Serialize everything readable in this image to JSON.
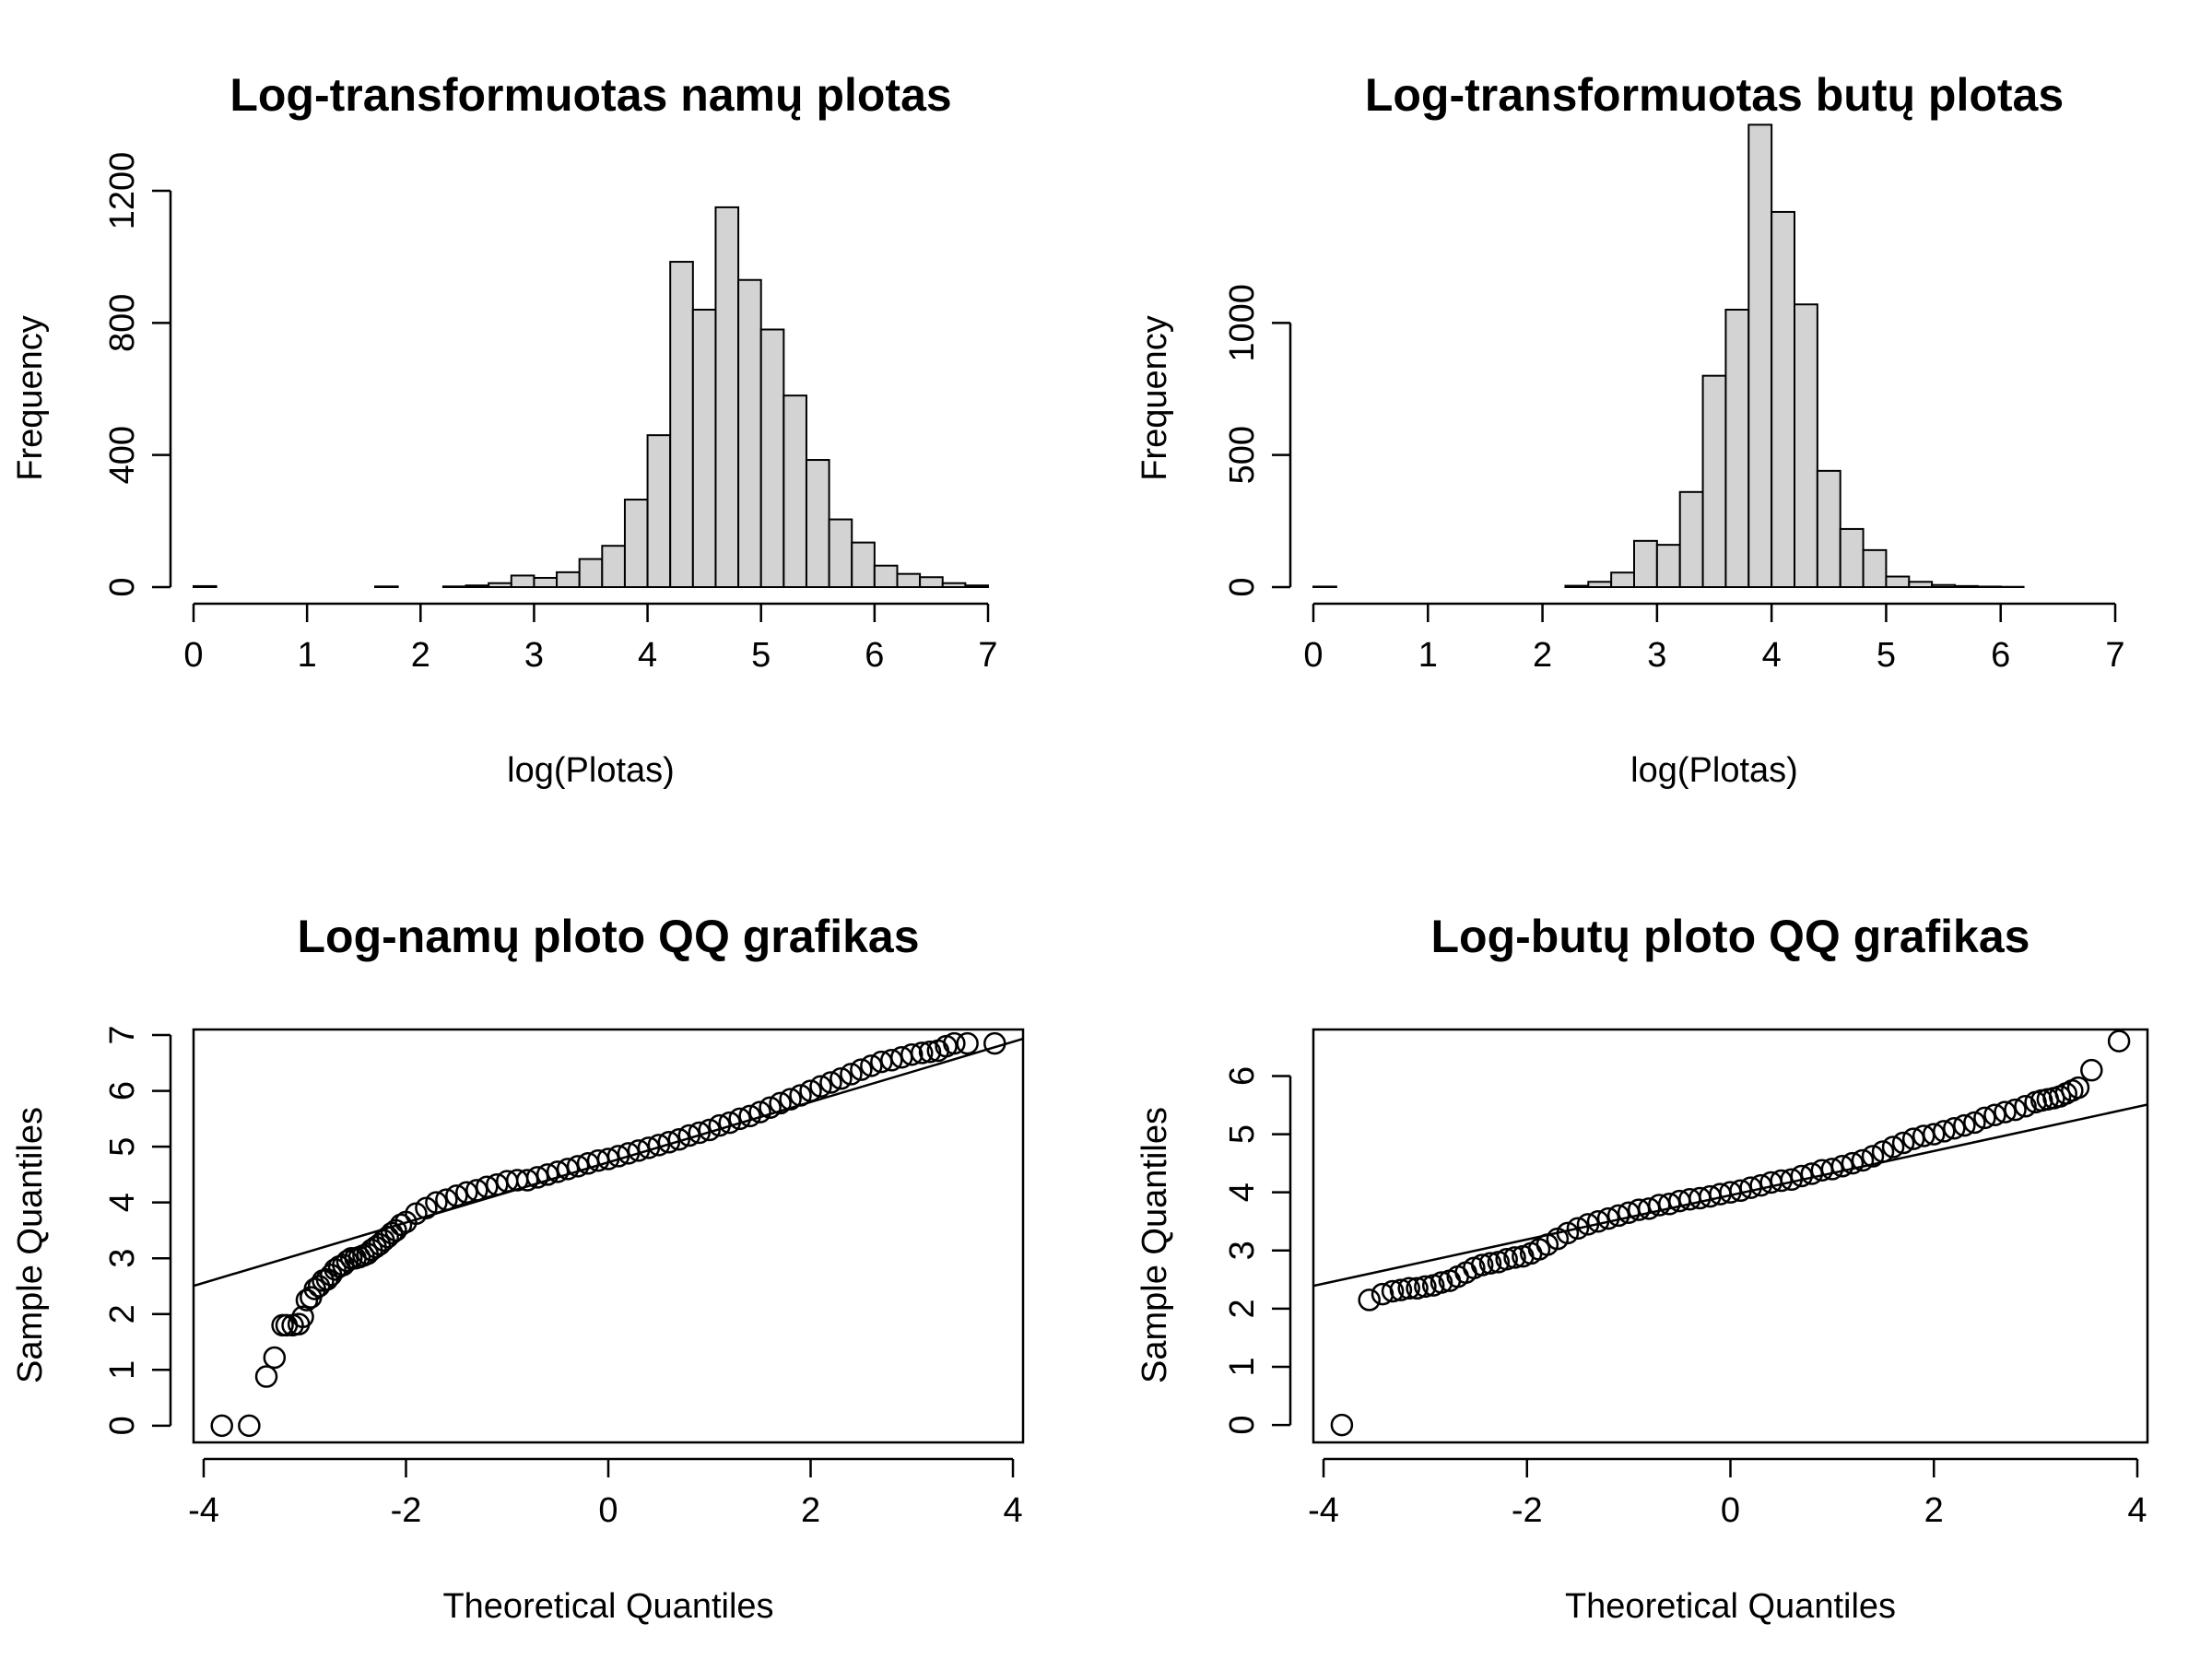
{
  "chart_data": [
    {
      "type": "bar",
      "subtype": "histogram",
      "title": "Log-transformuotas namų plotas",
      "xlabel": "log(Plotas)",
      "ylabel": "Frequency",
      "xlim": [
        0,
        7
      ],
      "ylim": [
        0,
        1200
      ],
      "x_ticks": [
        "0",
        "1",
        "2",
        "3",
        "4",
        "5",
        "6",
        "7"
      ],
      "y_ticks": [
        "0",
        "400",
        "800",
        "1200"
      ],
      "bin_width": 0.2,
      "bins_start": [
        0.0,
        0.2,
        0.4,
        0.6,
        0.8,
        1.0,
        1.2,
        1.4,
        1.6,
        1.8,
        2.0,
        2.2,
        2.4,
        2.6,
        2.8,
        3.0,
        3.2,
        3.4,
        3.6,
        3.8,
        4.0,
        4.2,
        4.4,
        4.6,
        4.8,
        5.0,
        5.2,
        5.4,
        5.6,
        5.8,
        6.0,
        6.2,
        6.4,
        6.6,
        6.8
      ],
      "values": [
        3,
        0,
        0,
        0,
        0,
        0,
        0,
        0,
        2,
        0,
        0,
        2,
        5,
        12,
        35,
        28,
        45,
        85,
        125,
        265,
        460,
        985,
        840,
        1150,
        930,
        780,
        580,
        385,
        205,
        135,
        65,
        40,
        30,
        12,
        5
      ],
      "grid": false,
      "legend": "none",
      "bar_color": "#d3d3d3"
    },
    {
      "type": "bar",
      "subtype": "histogram",
      "title": "Log-transformuotas butų plotas",
      "xlabel": "log(Plotas)",
      "ylabel": "Frequency",
      "xlim": [
        0,
        7
      ],
      "ylim": [
        0,
        1500
      ],
      "x_ticks": [
        "0",
        "1",
        "2",
        "3",
        "4",
        "5",
        "6",
        "7"
      ],
      "y_ticks": [
        "0",
        "500",
        "1000"
      ],
      "bin_width": 0.2,
      "bins_start": [
        0.0,
        0.2,
        0.4,
        0.6,
        0.8,
        1.0,
        1.2,
        1.4,
        1.6,
        1.8,
        2.0,
        2.2,
        2.4,
        2.6,
        2.8,
        3.0,
        3.2,
        3.4,
        3.6,
        3.8,
        4.0,
        4.2,
        4.4,
        4.6,
        4.8,
        5.0,
        5.2,
        5.4,
        5.6,
        5.8,
        6.0,
        6.2,
        6.4,
        6.6
      ],
      "values": [
        2,
        0,
        0,
        0,
        0,
        0,
        0,
        0,
        0,
        0,
        0,
        5,
        20,
        55,
        175,
        160,
        360,
        800,
        1050,
        1750,
        1420,
        1070,
        440,
        220,
        140,
        40,
        20,
        8,
        4,
        2,
        1,
        0,
        0,
        0
      ],
      "grid": false,
      "legend": "none",
      "bar_color": "#d3d3d3"
    },
    {
      "type": "scatter",
      "subtype": "qq-plot",
      "title": "Log-namų ploto QQ grafikas",
      "xlabel": "Theoretical Quantiles",
      "ylabel": "Sample Quantiles",
      "xlim": [
        -4.1,
        4.1
      ],
      "ylim": [
        -0.3,
        7.1
      ],
      "x_ticks": [
        "-4",
        "-2",
        "0",
        "2",
        "4"
      ],
      "y_ticks": [
        "0",
        "1",
        "2",
        "3",
        "4",
        "5",
        "6",
        "7"
      ],
      "reference_line": {
        "intercept": 4.72,
        "slope": 0.54
      },
      "x": [
        -3.82,
        -3.55,
        -3.38,
        -3.3,
        -3.22,
        -3.18,
        -3.12,
        -3.06,
        -3.02,
        -2.98,
        -2.94,
        -2.9,
        -2.86,
        -2.82,
        -2.78,
        -2.74,
        -2.7,
        -2.66,
        -2.62,
        -2.58,
        -2.54,
        -2.5,
        -2.46,
        -2.42,
        -2.38,
        -2.34,
        -2.3,
        -2.26,
        -2.22,
        -2.18,
        -2.14,
        -2.1,
        -2.05,
        -2.0,
        -1.9,
        -1.8,
        -1.7,
        -1.6,
        -1.5,
        -1.4,
        -1.3,
        -1.2,
        -1.1,
        -1.0,
        -0.9,
        -0.8,
        -0.7,
        -0.6,
        -0.5,
        -0.4,
        -0.3,
        -0.2,
        -0.1,
        0.0,
        0.1,
        0.2,
        0.3,
        0.4,
        0.5,
        0.6,
        0.7,
        0.8,
        0.9,
        1.0,
        1.1,
        1.2,
        1.3,
        1.4,
        1.5,
        1.6,
        1.7,
        1.8,
        1.9,
        2.0,
        2.1,
        2.2,
        2.3,
        2.4,
        2.5,
        2.6,
        2.7,
        2.8,
        2.9,
        3.0,
        3.1,
        3.18,
        3.26,
        3.34,
        3.42,
        3.55,
        3.82
      ],
      "y": [
        0.0,
        0.0,
        0.88,
        1.22,
        1.8,
        1.8,
        1.8,
        1.82,
        1.95,
        2.25,
        2.3,
        2.45,
        2.5,
        2.6,
        2.62,
        2.7,
        2.8,
        2.85,
        2.88,
        2.95,
        3.0,
        3.0,
        3.02,
        3.05,
        3.08,
        3.15,
        3.2,
        3.25,
        3.32,
        3.38,
        3.45,
        3.5,
        3.6,
        3.65,
        3.8,
        3.9,
        4.0,
        4.05,
        4.12,
        4.18,
        4.22,
        4.28,
        4.32,
        4.38,
        4.4,
        4.4,
        4.45,
        4.5,
        4.55,
        4.6,
        4.65,
        4.7,
        4.75,
        4.78,
        4.83,
        4.88,
        4.93,
        4.98,
        5.03,
        5.08,
        5.13,
        5.2,
        5.25,
        5.3,
        5.38,
        5.43,
        5.5,
        5.55,
        5.62,
        5.7,
        5.78,
        5.85,
        5.92,
        6.0,
        6.08,
        6.15,
        6.22,
        6.3,
        6.38,
        6.45,
        6.52,
        6.55,
        6.6,
        6.65,
        6.68,
        6.7,
        6.72,
        6.8,
        6.85,
        6.85,
        6.85
      ],
      "grid": false,
      "legend": "none"
    },
    {
      "type": "scatter",
      "subtype": "qq-plot",
      "title": "Log-butų ploto QQ grafikas",
      "xlabel": "Theoretical Quantiles",
      "ylabel": "Sample Quantiles",
      "xlim": [
        -4.1,
        4.1
      ],
      "ylim": [
        -0.3,
        6.8
      ],
      "x_ticks": [
        "-4",
        "-2",
        "0",
        "2",
        "4"
      ],
      "y_ticks": [
        "0",
        "1",
        "2",
        "3",
        "4",
        "5",
        "6"
      ],
      "reference_line": {
        "intercept": 3.95,
        "slope": 0.38
      },
      "x": [
        -3.82,
        -3.55,
        -3.42,
        -3.32,
        -3.24,
        -3.16,
        -3.08,
        -3.0,
        -2.92,
        -2.84,
        -2.76,
        -2.68,
        -2.6,
        -2.52,
        -2.44,
        -2.36,
        -2.28,
        -2.2,
        -2.12,
        -2.04,
        -1.96,
        -1.88,
        -1.8,
        -1.7,
        -1.6,
        -1.5,
        -1.4,
        -1.3,
        -1.2,
        -1.1,
        -1.0,
        -0.9,
        -0.8,
        -0.7,
        -0.6,
        -0.5,
        -0.4,
        -0.3,
        -0.2,
        -0.1,
        0.0,
        0.1,
        0.2,
        0.3,
        0.4,
        0.5,
        0.6,
        0.7,
        0.8,
        0.9,
        1.0,
        1.1,
        1.2,
        1.3,
        1.4,
        1.5,
        1.6,
        1.7,
        1.8,
        1.9,
        2.0,
        2.1,
        2.2,
        2.3,
        2.4,
        2.5,
        2.6,
        2.7,
        2.8,
        2.9,
        3.0,
        3.06,
        3.12,
        3.18,
        3.24,
        3.3,
        3.36,
        3.42,
        3.55,
        3.82
      ],
      "y": [
        0.0,
        2.15,
        2.25,
        2.3,
        2.32,
        2.35,
        2.35,
        2.38,
        2.4,
        2.45,
        2.48,
        2.55,
        2.62,
        2.7,
        2.75,
        2.78,
        2.8,
        2.85,
        2.88,
        2.9,
        2.95,
        3.02,
        3.1,
        3.2,
        3.3,
        3.38,
        3.45,
        3.5,
        3.55,
        3.6,
        3.65,
        3.7,
        3.72,
        3.78,
        3.8,
        3.85,
        3.88,
        3.9,
        3.93,
        3.97,
        4.0,
        4.03,
        4.08,
        4.12,
        4.17,
        4.2,
        4.22,
        4.28,
        4.32,
        4.38,
        4.4,
        4.45,
        4.5,
        4.55,
        4.62,
        4.7,
        4.78,
        4.85,
        4.92,
        4.97,
        5.0,
        5.05,
        5.1,
        5.15,
        5.2,
        5.28,
        5.33,
        5.38,
        5.42,
        5.48,
        5.55,
        5.58,
        5.6,
        5.62,
        5.65,
        5.7,
        5.75,
        5.8,
        6.1,
        6.6
      ],
      "grid": false,
      "legend": "none"
    }
  ]
}
